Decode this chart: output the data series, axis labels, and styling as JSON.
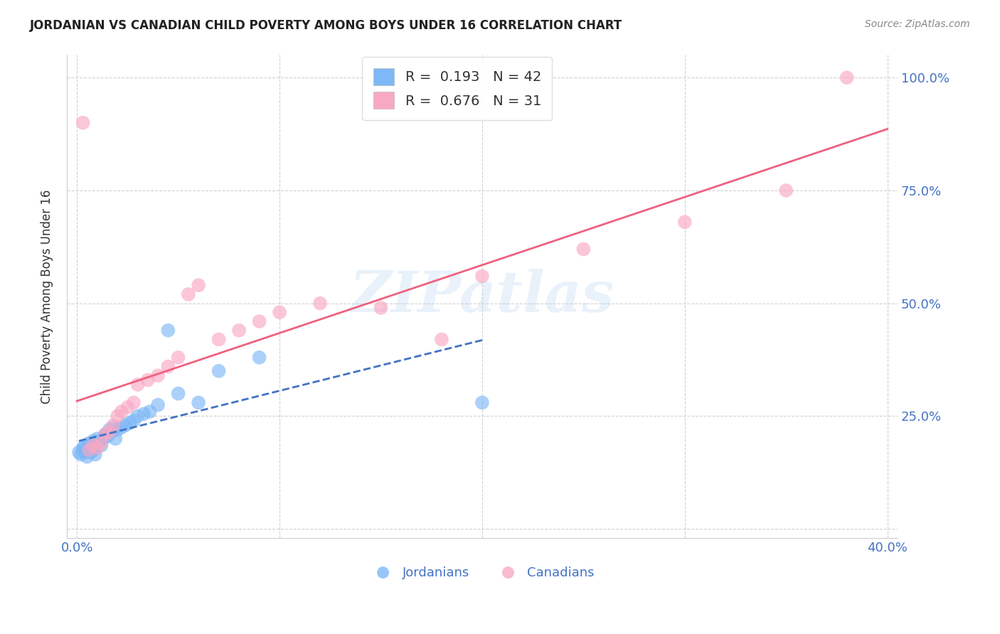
{
  "title": "JORDANIAN VS CANADIAN CHILD POVERTY AMONG BOYS UNDER 16 CORRELATION CHART",
  "source": "Source: ZipAtlas.com",
  "ylabel": "Child Poverty Among Boys Under 16",
  "xlim": [
    0.0,
    0.4
  ],
  "ylim": [
    0.0,
    1.0
  ],
  "R_jordanian": 0.193,
  "N_jordanian": 42,
  "R_canadian": 0.676,
  "N_canadian": 31,
  "color_jordanian": "#7EB8F7",
  "color_canadian": "#F9A8C4",
  "line_jordanian": "#4472C4",
  "line_canadian": "#F06080",
  "legend_label_jordanian": "Jordanians",
  "legend_label_canadian": "Canadians",
  "watermark": "ZIPatlas",
  "jordanian_x": [
    0.001,
    0.002,
    0.003,
    0.003,
    0.004,
    0.004,
    0.005,
    0.005,
    0.006,
    0.006,
    0.007,
    0.007,
    0.008,
    0.008,
    0.009,
    0.009,
    0.01,
    0.01,
    0.011,
    0.012,
    0.013,
    0.014,
    0.015,
    0.016,
    0.017,
    0.018,
    0.019,
    0.02,
    0.022,
    0.024,
    0.026,
    0.028,
    0.03,
    0.033,
    0.036,
    0.04,
    0.045,
    0.05,
    0.06,
    0.07,
    0.09,
    0.2
  ],
  "jordanian_y": [
    0.17,
    0.165,
    0.175,
    0.18,
    0.17,
    0.185,
    0.16,
    0.175,
    0.18,
    0.19,
    0.17,
    0.185,
    0.175,
    0.195,
    0.165,
    0.18,
    0.19,
    0.2,
    0.195,
    0.185,
    0.2,
    0.21,
    0.205,
    0.22,
    0.215,
    0.225,
    0.2,
    0.22,
    0.225,
    0.23,
    0.235,
    0.24,
    0.25,
    0.255,
    0.26,
    0.275,
    0.44,
    0.3,
    0.28,
    0.35,
    0.38,
    0.28
  ],
  "canadian_x": [
    0.003,
    0.006,
    0.008,
    0.01,
    0.012,
    0.014,
    0.016,
    0.018,
    0.02,
    0.022,
    0.025,
    0.028,
    0.03,
    0.035,
    0.04,
    0.045,
    0.05,
    0.055,
    0.06,
    0.07,
    0.08,
    0.09,
    0.1,
    0.12,
    0.15,
    0.18,
    0.2,
    0.25,
    0.3,
    0.35,
    0.38
  ],
  "canadian_y": [
    0.9,
    0.175,
    0.185,
    0.18,
    0.19,
    0.21,
    0.215,
    0.23,
    0.25,
    0.26,
    0.27,
    0.28,
    0.32,
    0.33,
    0.34,
    0.36,
    0.38,
    0.52,
    0.54,
    0.42,
    0.44,
    0.46,
    0.48,
    0.5,
    0.49,
    0.42,
    0.56,
    0.62,
    0.68,
    0.75,
    1.0
  ]
}
